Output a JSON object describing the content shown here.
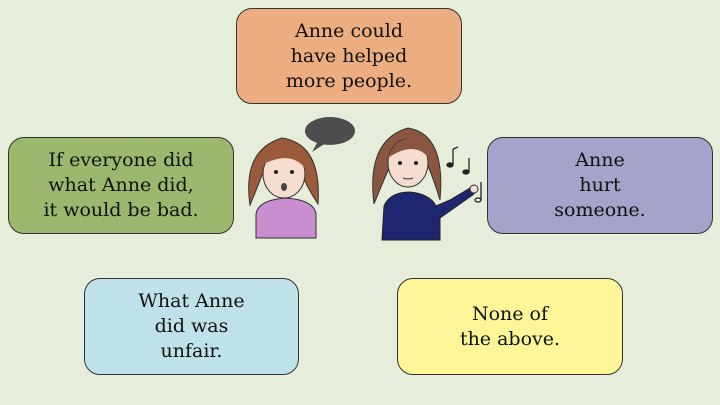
{
  "colors": {
    "background": "#e6eedb",
    "top_card": "#ecae81",
    "left_card": "#9cb76e",
    "right_card": "#a4a3c9",
    "bottom_left_card": "#bfe1ea",
    "bottom_right_card": "#fdf699"
  },
  "options": [
    {
      "id": "c-top",
      "text": "Anne could\nhave helped\nmore people."
    },
    {
      "id": "c-left",
      "text": "If everyone did\nwhat Anne did,\nit would be bad."
    },
    {
      "id": "c-right",
      "text": "Anne\nhurt\nsomeone."
    },
    {
      "id": "c-bl",
      "text": "What Anne\ndid was\nunfair."
    },
    {
      "id": "c-br",
      "text": "None of\nthe above."
    }
  ],
  "icons": [
    "speech-bubble-icon",
    "music-notes-icon"
  ]
}
